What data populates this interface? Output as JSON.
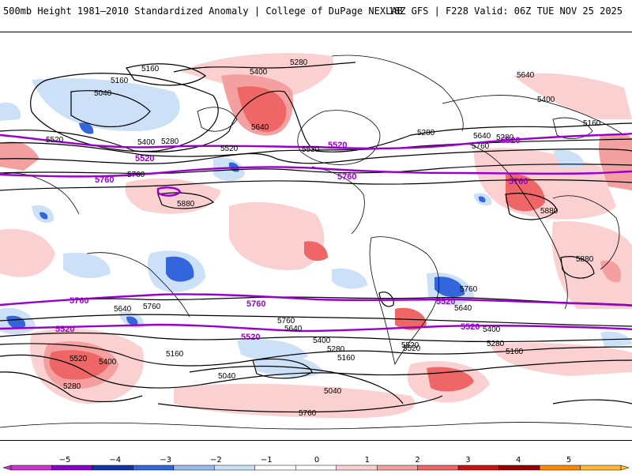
{
  "header": {
    "title_left": "500mb Height 1981–2010 Standardized Anomaly | College of DuPage NEXLAB",
    "title_right": "18Z GFS | F228 Valid: 06Z TUE NOV 25 2025"
  },
  "map": {
    "variable": "500mb Height",
    "contour_labels_black": [
      "5280",
      "5400",
      "5160",
      "5040",
      "5160",
      "5520",
      "5640",
      "5400",
      "5280",
      "5520",
      "5760",
      "5880",
      "5280",
      "5520",
      "5640",
      "5760",
      "5880",
      "5880",
      "5640",
      "5760",
      "5760",
      "5640",
      "5520",
      "5400",
      "5280",
      "5160",
      "5040",
      "5520",
      "5400",
      "5280",
      "5160",
      "5040",
      "5760",
      "5640",
      "5520",
      "5400",
      "5280",
      "5160",
      "5760",
      "5640",
      "5400",
      "5280",
      "5160"
    ],
    "contour_labels_purple": [
      "5520",
      "5520",
      "5760",
      "5520",
      "5760",
      "5520",
      "5760",
      "5760",
      "5760",
      "5520",
      "5520",
      "5520"
    ],
    "colors": {
      "contour": "#000000",
      "highlight_contour": "#9900cc",
      "coastline": "#000000"
    }
  },
  "colorbar": {
    "ticks": [
      "−5",
      "−4",
      "−3",
      "−2",
      "−1",
      "0",
      "1",
      "2",
      "3",
      "4",
      "5"
    ],
    "bins": [
      {
        "color": "#cc33cc"
      },
      {
        "color": "#8800cc"
      },
      {
        "color": "#1133aa"
      },
      {
        "color": "#3366dd"
      },
      {
        "color": "#99bbee"
      },
      {
        "color": "#cce0f8"
      },
      {
        "color": "#ffffff"
      },
      {
        "color": "#ffffff"
      },
      {
        "color": "#fbd0d0"
      },
      {
        "color": "#f5a0a0"
      },
      {
        "color": "#ee6666"
      },
      {
        "color": "#cc1111"
      },
      {
        "color": "#990000"
      },
      {
        "color": "#ff8800"
      },
      {
        "color": "#ffbb33"
      }
    ]
  }
}
